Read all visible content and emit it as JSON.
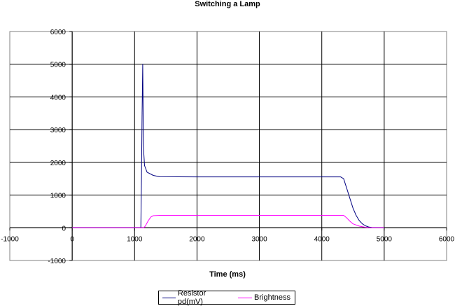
{
  "chart_data": {
    "type": "line",
    "title": "Switching a Lamp",
    "xlabel": "Time (ms)",
    "ylabel": "",
    "xlim": [
      -1000,
      6000
    ],
    "ylim": [
      -1000,
      6000
    ],
    "xticks": [
      "-1000",
      "0",
      "1000",
      "2000",
      "3000",
      "4000",
      "5000",
      "6000"
    ],
    "yticks": [
      "-1000",
      "0",
      "1000",
      "2000",
      "3000",
      "4000",
      "5000",
      "6000"
    ],
    "grid": true,
    "legend_position": "bottom",
    "series": [
      {
        "name": "Resistor pd(mV)",
        "color": "#000080",
        "points": [
          [
            0,
            0
          ],
          [
            1000,
            0
          ],
          [
            1100,
            0
          ],
          [
            1110,
            1500
          ],
          [
            1120,
            3500
          ],
          [
            1130,
            5000
          ],
          [
            1135,
            4000
          ],
          [
            1140,
            2500
          ],
          [
            1160,
            1900
          ],
          [
            1200,
            1700
          ],
          [
            1300,
            1600
          ],
          [
            1400,
            1560
          ],
          [
            2000,
            1555
          ],
          [
            3000,
            1555
          ],
          [
            4000,
            1555
          ],
          [
            4300,
            1555
          ],
          [
            4350,
            1500
          ],
          [
            4400,
            1200
          ],
          [
            4450,
            900
          ],
          [
            4500,
            600
          ],
          [
            4550,
            380
          ],
          [
            4600,
            220
          ],
          [
            4650,
            120
          ],
          [
            4700,
            60
          ],
          [
            4750,
            25
          ],
          [
            4800,
            8
          ],
          [
            4900,
            0
          ],
          [
            5000,
            0
          ]
        ]
      },
      {
        "name": "Brightness",
        "color": "#ff00ff",
        "points": [
          [
            0,
            0
          ],
          [
            1000,
            0
          ],
          [
            1150,
            0
          ],
          [
            1180,
            80
          ],
          [
            1220,
            220
          ],
          [
            1260,
            330
          ],
          [
            1300,
            370
          ],
          [
            1400,
            380
          ],
          [
            2000,
            380
          ],
          [
            3000,
            380
          ],
          [
            4000,
            380
          ],
          [
            4350,
            380
          ],
          [
            4400,
            300
          ],
          [
            4450,
            200
          ],
          [
            4500,
            120
          ],
          [
            4600,
            50
          ],
          [
            4700,
            15
          ],
          [
            4800,
            0
          ],
          [
            5000,
            0
          ]
        ]
      }
    ]
  }
}
